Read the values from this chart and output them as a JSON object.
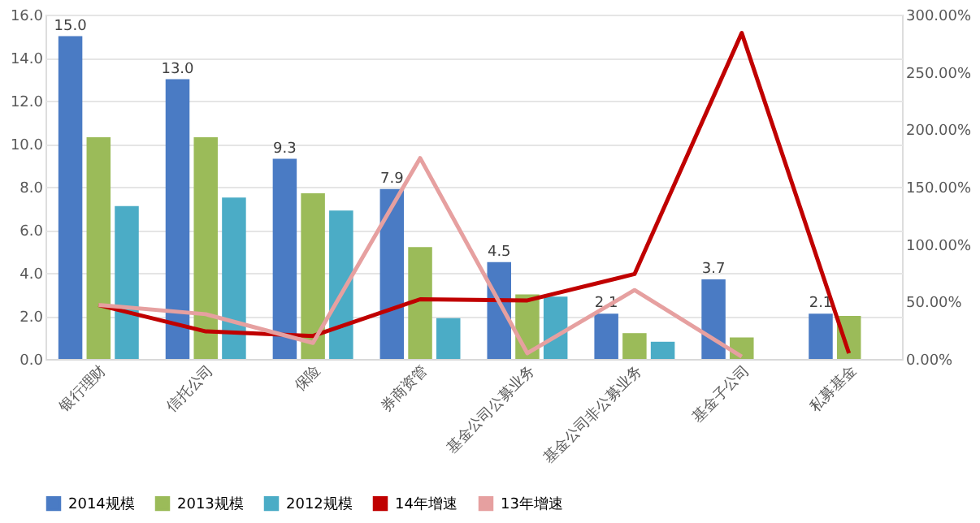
{
  "chart_data": {
    "type": "bar",
    "categories": [
      "银行理财",
      "信托公司",
      "保险",
      "券商资管",
      "基金公司公募业务",
      "基金公司非公募业务",
      "基金子公司",
      "私募基金"
    ],
    "series": [
      {
        "name": "2014规模",
        "color": "#4a7bc4",
        "values": [
          15.0,
          13.0,
          9.3,
          7.9,
          4.5,
          2.1,
          3.7,
          2.1
        ],
        "value_labels": [
          "15.0",
          "13.0",
          "9.3",
          "7.9",
          "4.5",
          "2.1",
          "3.7",
          "2.1"
        ]
      },
      {
        "name": "2013规模",
        "color": "#9bbb59",
        "values": [
          10.3,
          10.3,
          7.7,
          5.2,
          3.0,
          1.2,
          1.0,
          2.0
        ]
      },
      {
        "name": "2012规模",
        "color": "#4bacc6",
        "values": [
          7.1,
          7.5,
          6.9,
          1.9,
          2.9,
          0.8,
          null,
          null
        ]
      },
      {
        "name": "14年增速",
        "type": "line",
        "axis": "y2",
        "color": "#c00000",
        "values": [
          47,
          24,
          20,
          52,
          51,
          74,
          284,
          5
        ]
      },
      {
        "name": "13年增速",
        "type": "line",
        "axis": "y2",
        "color": "#e6a0a0",
        "values": [
          47,
          39,
          14,
          175,
          5,
          60,
          2,
          null
        ]
      }
    ],
    "ylim": [
      0,
      16
    ],
    "yticks": [
      {
        "value": 0,
        "label": "0.0"
      },
      {
        "value": 2,
        "label": "2.0"
      },
      {
        "value": 4,
        "label": "4.0"
      },
      {
        "value": 6,
        "label": "6.0"
      },
      {
        "value": 8,
        "label": "8.0"
      },
      {
        "value": 10,
        "label": "10.0"
      },
      {
        "value": 12,
        "label": "12.0"
      },
      {
        "value": 14,
        "label": "14.0"
      },
      {
        "value": 16,
        "label": "16.0"
      }
    ],
    "y2lim": [
      0,
      300
    ],
    "y2ticks": [
      {
        "value": 0,
        "label": "0.00%"
      },
      {
        "value": 50,
        "label": "50.00%"
      },
      {
        "value": 100,
        "label": "100.00%"
      },
      {
        "value": 150,
        "label": "150.00%"
      },
      {
        "value": 200,
        "label": "200.00%"
      },
      {
        "value": 250,
        "label": "250.00%"
      },
      {
        "value": 300,
        "label": "300.00%"
      }
    ],
    "grid": "y",
    "legend": "bottom"
  }
}
